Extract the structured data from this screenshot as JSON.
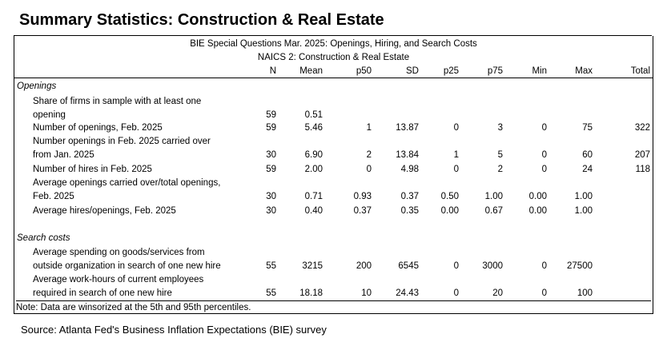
{
  "title": "Summary Statistics: Construction & Real Estate",
  "caption1": "BIE Special Questions Mar. 2025: Openings, Hiring, and Search Costs",
  "caption2": "NAICS 2: Construction & Real Estate",
  "columns": [
    "N",
    "Mean",
    "p50",
    "SD",
    "p25",
    "p75",
    "Min",
    "Max",
    "Total"
  ],
  "sections": {
    "openings": "Openings",
    "search_costs": "Search costs"
  },
  "rows": {
    "share": {
      "label1": "Share of firms in sample with at least one",
      "label2": "opening",
      "values": [
        "59",
        "0.51",
        "",
        "",
        "",
        "",
        "",
        "",
        ""
      ]
    },
    "num_openings": {
      "label": "Number of openings, Feb. 2025",
      "values": [
        "59",
        "5.46",
        "1",
        "13.87",
        "0",
        "3",
        "0",
        "75",
        "322"
      ]
    },
    "carried_over": {
      "label1": "Number openings in Feb. 2025 carried over",
      "label2": "from Jan. 2025",
      "values": [
        "30",
        "6.90",
        "2",
        "13.84",
        "1",
        "5",
        "0",
        "60",
        "207"
      ]
    },
    "hires": {
      "label": "Number of hires in Feb. 2025",
      "values": [
        "59",
        "2.00",
        "0",
        "4.98",
        "0",
        "2",
        "0",
        "24",
        "118"
      ]
    },
    "avg_carried": {
      "label1": "Average openings carried over/total openings,",
      "label2": "Feb. 2025",
      "values": [
        "30",
        "0.71",
        "0.93",
        "0.37",
        "0.50",
        "1.00",
        "0.00",
        "1.00",
        ""
      ]
    },
    "avg_hires": {
      "label": "Average hires/openings, Feb. 2025",
      "values": [
        "30",
        "0.40",
        "0.37",
        "0.35",
        "0.00",
        "0.67",
        "0.00",
        "1.00",
        ""
      ]
    },
    "spending": {
      "label1": "Average spending on goods/services from",
      "label2": "outside organization in search of one new hire",
      "values": [
        "55",
        "3215",
        "200",
        "6545",
        "0",
        "3000",
        "0",
        "27500",
        ""
      ]
    },
    "workhours": {
      "label1": "Average work-hours of current employees",
      "label2": "required in search of one new hire",
      "values": [
        "55",
        "18.18",
        "10",
        "24.43",
        "0",
        "20",
        "0",
        "100",
        ""
      ]
    }
  },
  "note": "Note: Data are winsorized at the 5th and 95th percentiles.",
  "source": "Source: Atlanta Fed's Business Inflation Expectations (BIE) survey"
}
